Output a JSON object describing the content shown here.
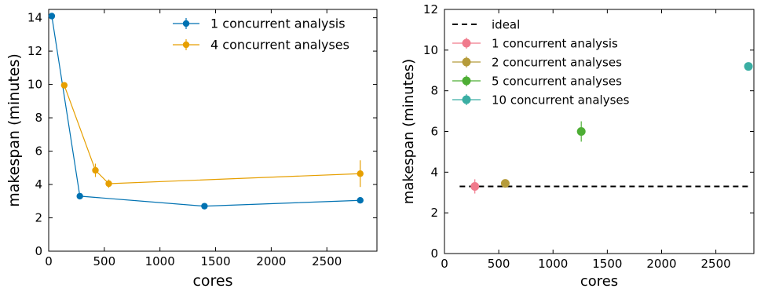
{
  "chart_data": [
    {
      "type": "line",
      "xlabel": "cores",
      "ylabel": "makespan (minutes)",
      "xlim": [
        0,
        2950
      ],
      "ylim": [
        0,
        14.5
      ],
      "xticks": [
        0,
        500,
        1000,
        1500,
        2000,
        2500
      ],
      "yticks": [
        0,
        2,
        4,
        6,
        8,
        10,
        12,
        14
      ],
      "grid": false,
      "legend_position": "top-right",
      "series": [
        {
          "name": "1 concurrent analysis",
          "color": "#0072b2",
          "x": [
            28,
            280,
            1400,
            2800
          ],
          "y": [
            14.1,
            3.3,
            2.7,
            3.05
          ],
          "err": [
            0.05,
            0.1,
            0.1,
            0.1
          ]
        },
        {
          "name": "4 concurrent analyses",
          "color": "#e69f00",
          "x": [
            140,
            420,
            540,
            2800
          ],
          "y": [
            9.95,
            4.85,
            4.05,
            4.65
          ],
          "err": [
            0.15,
            0.4,
            0.25,
            0.8
          ]
        }
      ]
    },
    {
      "type": "scatter",
      "xlabel": "cores",
      "ylabel": "makespan (minutes)",
      "xlim": [
        0,
        2850
      ],
      "ylim": [
        0,
        12
      ],
      "xticks": [
        0,
        500,
        1000,
        1500,
        2000,
        2500
      ],
      "yticks": [
        0,
        2,
        4,
        6,
        8,
        10,
        12
      ],
      "grid": false,
      "legend_position": "top-left",
      "ideal": {
        "name": "ideal",
        "y": 3.3,
        "x": [
          140,
          2800
        ],
        "color": "#000000"
      },
      "series": [
        {
          "name": "1 concurrent analysis",
          "color": "#f07a8c",
          "x": [
            280
          ],
          "y": [
            3.3
          ],
          "err": [
            0.35
          ]
        },
        {
          "name": "2 concurrent analyses",
          "color": "#b59b3a",
          "x": [
            560
          ],
          "y": [
            3.45
          ],
          "err": [
            0.15
          ]
        },
        {
          "name": "5 concurrent analyses",
          "color": "#4eae35",
          "x": [
            1260
          ],
          "y": [
            6.0
          ],
          "err": [
            0.5
          ]
        },
        {
          "name": "10 concurrent analyses",
          "color": "#3aaea3",
          "x": [
            2800
          ],
          "y": [
            9.2
          ],
          "err": [
            0.1
          ]
        }
      ]
    }
  ]
}
